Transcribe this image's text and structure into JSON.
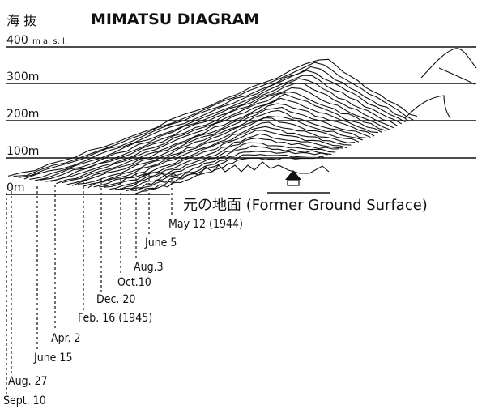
{
  "diagram": {
    "title": "MIMATSU DIAGRAM",
    "title_jp": "海 抜",
    "unit_label": "m a. s. l.",
    "y_labels": [
      "400",
      "300m",
      "200m",
      "100m",
      "0m"
    ],
    "former_ground": "元の地面 (Former Ground Surface)",
    "dates": [
      "May 12 (1944)",
      "June 5",
      "Aug.3",
      "Oct.10",
      "Dec. 20",
      "Feb. 16 (1945)",
      "Apr. 2",
      "June 15",
      "Aug. 27",
      "Sept. 10"
    ]
  }
}
